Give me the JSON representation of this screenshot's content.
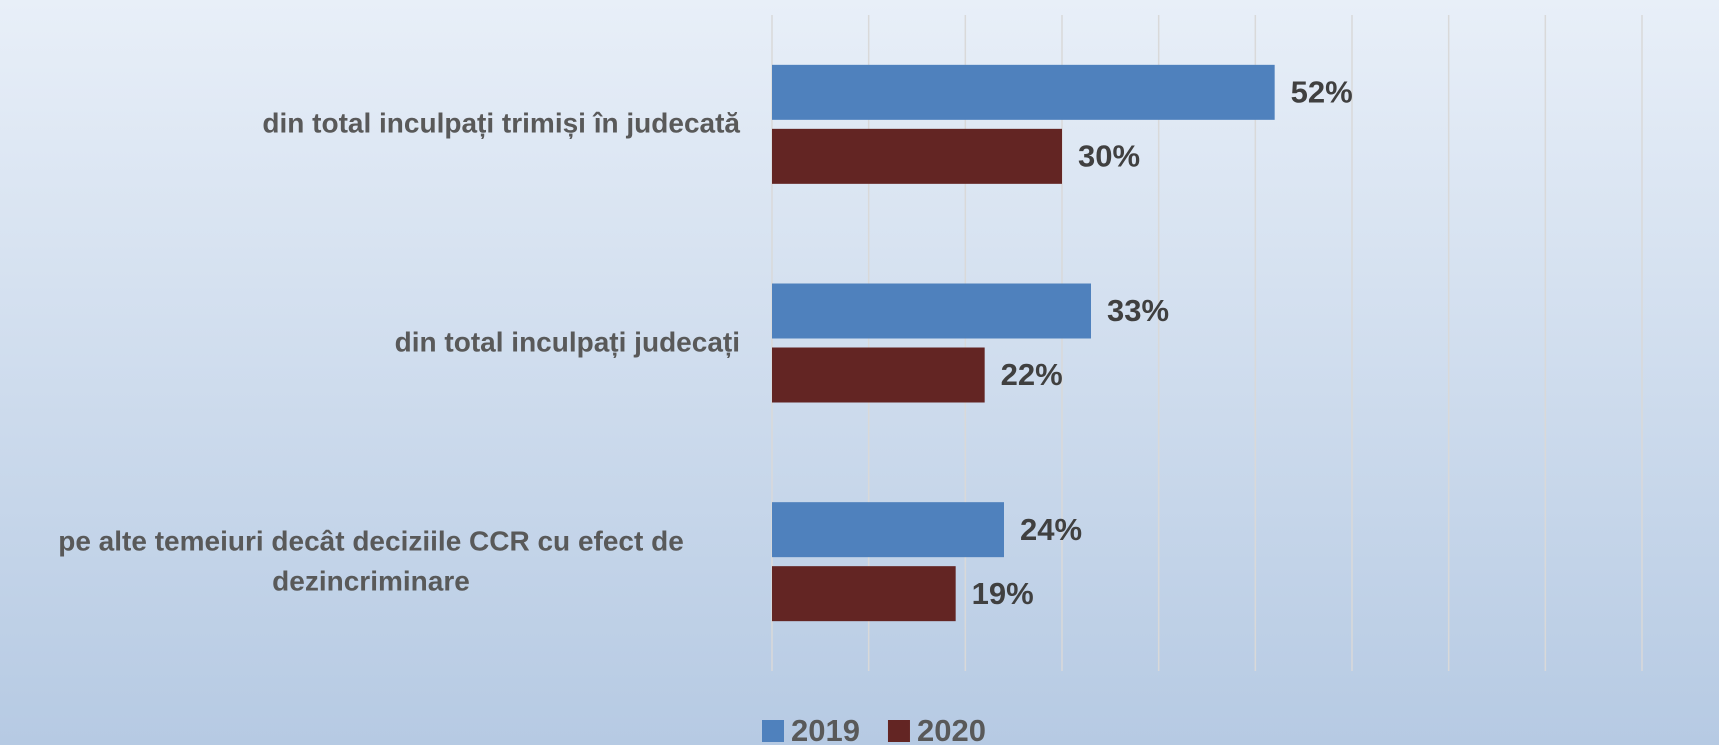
{
  "chart_data": {
    "type": "barh",
    "categories": [
      "din total inculpați trimiși în judecată",
      "din total inculpați judecați",
      "pe alte temeiuri decât deciziile CCR cu efect de dezincriminare"
    ],
    "series": [
      {
        "name": "2019",
        "color": "#4f81bd",
        "values": [
          52,
          33,
          24
        ],
        "value_labels": [
          "52%",
          "33%",
          "24%"
        ]
      },
      {
        "name": "2020",
        "color": "#632523",
        "values": [
          30,
          22,
          19
        ],
        "value_labels": [
          "30%",
          "22%",
          "19%"
        ]
      }
    ],
    "xlim": [
      0,
      90
    ],
    "xticks": [
      0,
      10,
      20,
      30,
      40,
      50,
      60,
      70,
      80,
      90
    ],
    "grid": true,
    "legend": "bottom"
  }
}
